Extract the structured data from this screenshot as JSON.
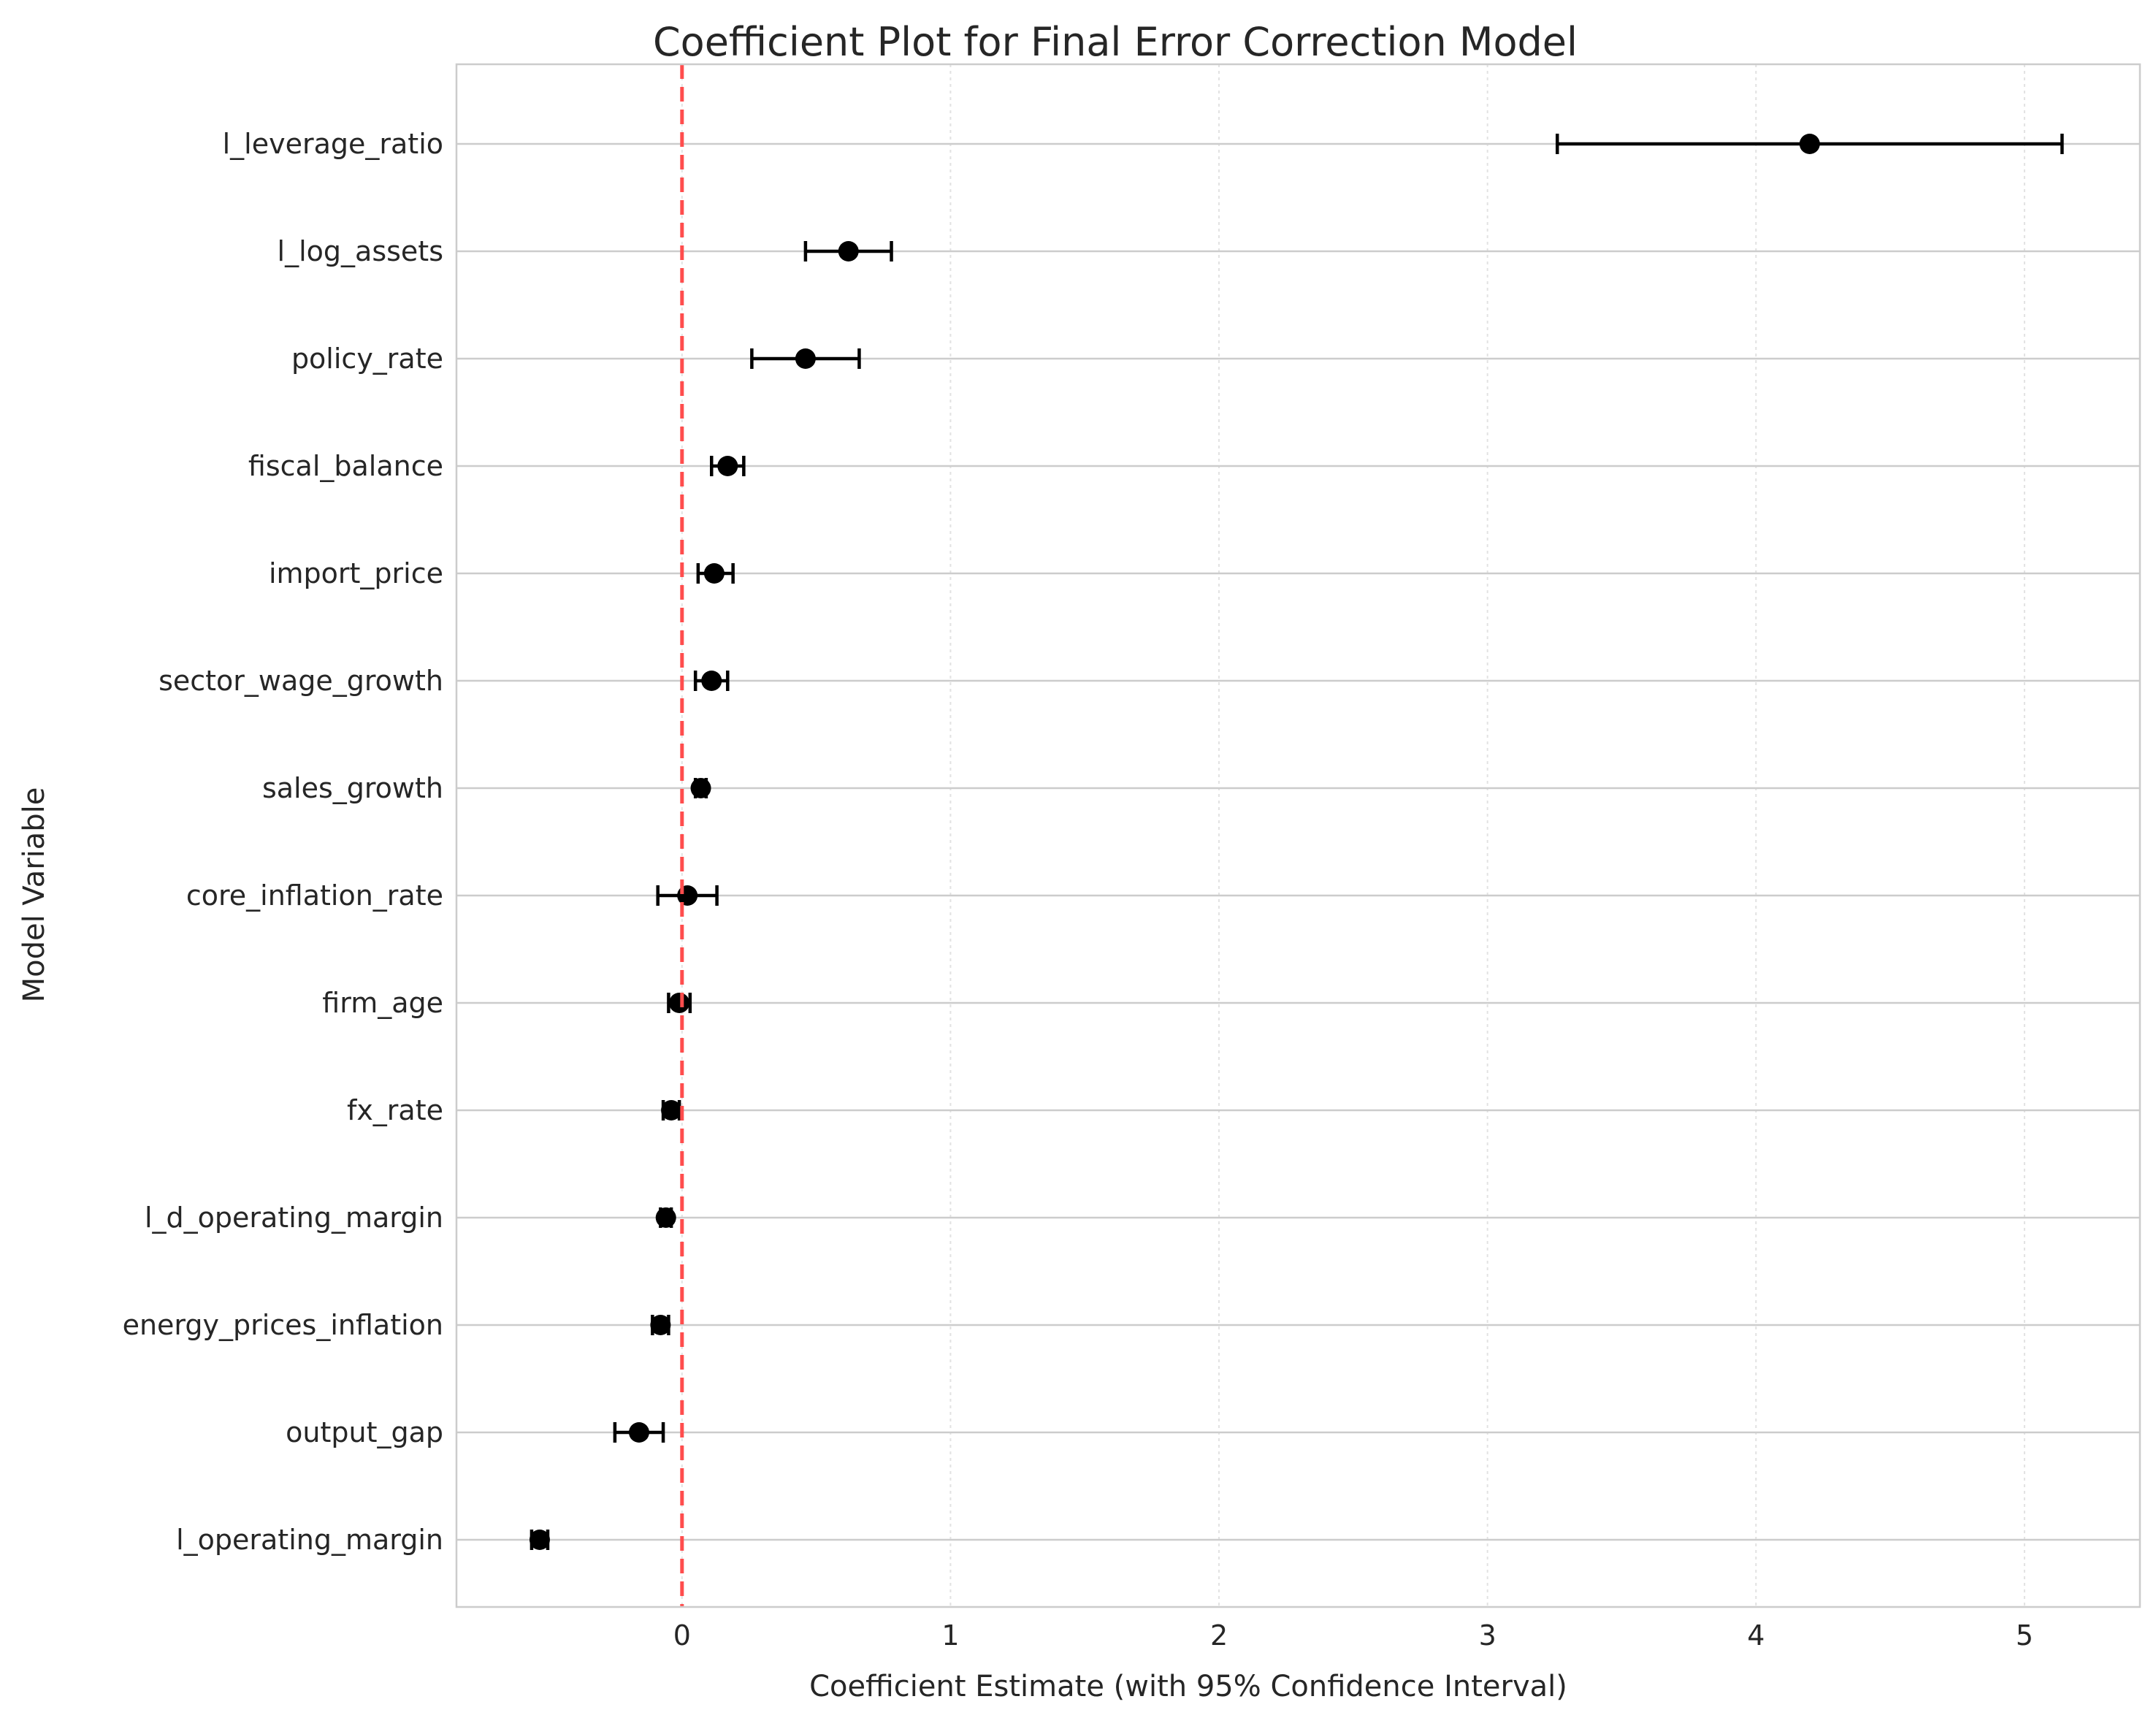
{
  "chart_data": {
    "type": "scatter",
    "title": "Coefficient Plot for Final Error Correction Model",
    "xlabel": "Coefficient Estimate (with 95% Confidence Interval)",
    "ylabel": "Model Variable",
    "xlim": [
      -0.84,
      5.43
    ],
    "x_ticks": [
      0,
      1,
      2,
      3,
      4,
      5
    ],
    "grid": true,
    "reference_line": {
      "x": 0,
      "color": "#ff4d4d",
      "style": "dashed"
    },
    "colors": {
      "marker": "#000000",
      "errorbar": "#000000",
      "grid": "#cccccc",
      "reference": "#ff4d4d"
    },
    "series": [
      {
        "variables": [
          "l_leverage_ratio",
          "l_log_assets",
          "policy_rate",
          "fiscal_balance",
          "import_price",
          "sector_wage_growth",
          "sales_growth",
          "core_inflation_rate",
          "firm_age",
          "fx_rate",
          "l_d_operating_margin",
          "energy_prices_inflation",
          "output_gap",
          "l_operating_margin"
        ],
        "estimates": [
          4.2,
          0.62,
          0.46,
          0.17,
          0.12,
          0.11,
          0.07,
          0.02,
          -0.01,
          -0.04,
          -0.06,
          -0.08,
          -0.16,
          -0.53
        ],
        "ci_lower": [
          3.26,
          0.46,
          0.26,
          0.11,
          0.06,
          0.05,
          0.05,
          -0.09,
          -0.05,
          -0.07,
          -0.08,
          -0.11,
          -0.25,
          -0.56
        ],
        "ci_upper": [
          5.14,
          0.78,
          0.66,
          0.23,
          0.19,
          0.17,
          0.09,
          0.13,
          0.03,
          -0.01,
          -0.04,
          -0.05,
          -0.07,
          -0.5
        ]
      }
    ]
  }
}
